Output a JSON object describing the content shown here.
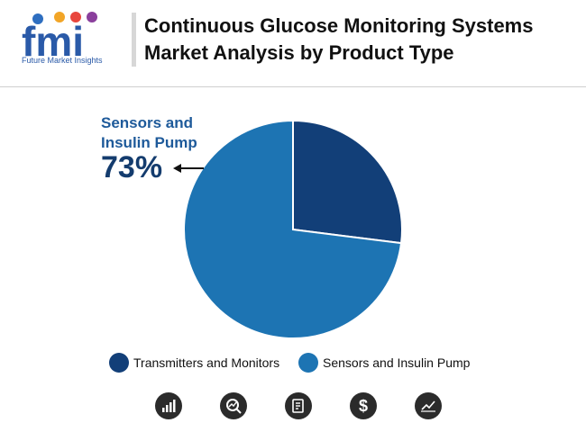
{
  "header": {
    "logo_text": "fmi",
    "logo_subtitle": "Future Market Insights",
    "title_line1": "Continuous Glucose Monitoring Systems",
    "title_line2": "Market Analysis by Product Type"
  },
  "callout": {
    "label": "Sensors and Insulin Pump",
    "value": "73%"
  },
  "colors": {
    "transmitters": "#123f78",
    "sensors": "#1d74b3",
    "icon_bg": "#2b2b2b"
  },
  "chart_data": {
    "type": "pie",
    "title": "Continuous Glucose Monitoring Systems Market Analysis by Product Type",
    "slices": [
      {
        "label": "Transmitters and Monitors",
        "value": 27,
        "color": "#123f78"
      },
      {
        "label": "Sensors and Insulin Pump",
        "value": 73,
        "color": "#1d74b3"
      }
    ],
    "legend_position": "bottom"
  },
  "footer_icons": [
    "bar-chart-icon",
    "magnifier-chart-icon",
    "document-icon",
    "dollar-icon",
    "trend-chart-icon"
  ]
}
